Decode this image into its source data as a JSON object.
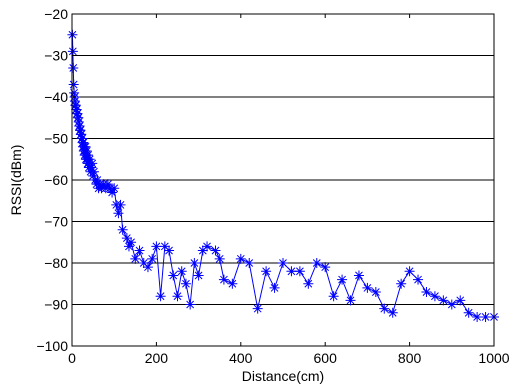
{
  "chart_data": {
    "type": "line",
    "xlabel": "Distance(cm)",
    "ylabel": "RSSI(dBm)",
    "xlim": [
      0,
      1000
    ],
    "ylim": [
      -100,
      -20
    ],
    "xticks": [
      0,
      200,
      400,
      600,
      800,
      1000
    ],
    "yticks": [
      -100,
      -90,
      -80,
      -70,
      -60,
      -50,
      -40,
      -30,
      -20
    ],
    "grid": "horizontal",
    "marker": "asterisk",
    "color": "#0000ff",
    "series": [
      {
        "x": [
          1,
          2,
          3,
          4,
          5,
          6,
          7,
          8,
          9,
          10,
          11,
          12,
          13,
          14,
          15,
          16,
          17,
          18,
          19,
          20,
          21,
          22,
          23,
          24,
          25,
          26,
          27,
          28,
          29,
          30,
          31,
          32,
          33,
          34,
          35,
          36,
          37,
          38,
          39,
          40,
          42,
          44,
          46,
          48,
          50,
          52,
          55,
          58,
          60,
          63,
          66,
          70,
          75,
          80,
          85,
          90,
          95,
          100,
          105,
          110,
          115,
          120,
          130,
          135,
          140,
          150,
          160,
          170,
          180,
          190,
          200,
          210,
          220,
          230,
          240,
          250,
          260,
          270,
          280,
          290,
          300,
          310,
          320,
          340,
          350,
          360,
          380,
          400,
          420,
          440,
          460,
          480,
          500,
          520,
          540,
          560,
          580,
          600,
          620,
          640,
          660,
          680,
          700,
          720,
          740,
          760,
          780,
          800,
          820,
          840,
          860,
          880,
          900,
          920,
          940,
          960,
          980,
          1000
        ],
        "y": [
          -25,
          -29,
          -33,
          -37,
          -39,
          -40,
          -41,
          -42,
          -42,
          -43,
          -43,
          -44,
          -44,
          -45,
          -45,
          -46,
          -47,
          -47,
          -48,
          -48,
          -49,
          -49,
          -50,
          -50,
          -51,
          -52,
          -51,
          -53,
          -52,
          -54,
          -53,
          -52,
          -55,
          -54,
          -53,
          -55,
          -56,
          -54,
          -56,
          -57,
          -55,
          -58,
          -57,
          -56,
          -59,
          -58,
          -60,
          -61,
          -60,
          -62,
          -61,
          -62,
          -61,
          -62,
          -61,
          -62,
          -63,
          -62,
          -66,
          -68,
          -66,
          -72,
          -74,
          -76,
          -75,
          -79,
          -77,
          -80,
          -81,
          -79,
          -76,
          -88,
          -76,
          -77,
          -83,
          -88,
          -82,
          -85,
          -90,
          -80,
          -83,
          -77,
          -76,
          -77,
          -79,
          -84,
          -85,
          -79,
          -80,
          -91,
          -82,
          -86,
          -80,
          -82,
          -82,
          -85,
          -80,
          -81,
          -88,
          -84,
          -89,
          -83,
          -86,
          -87,
          -91,
          -92,
          -85,
          -82,
          -84,
          -87,
          -88,
          -89,
          -90,
          -89,
          -92,
          -93,
          -93,
          -93
        ]
      }
    ]
  }
}
